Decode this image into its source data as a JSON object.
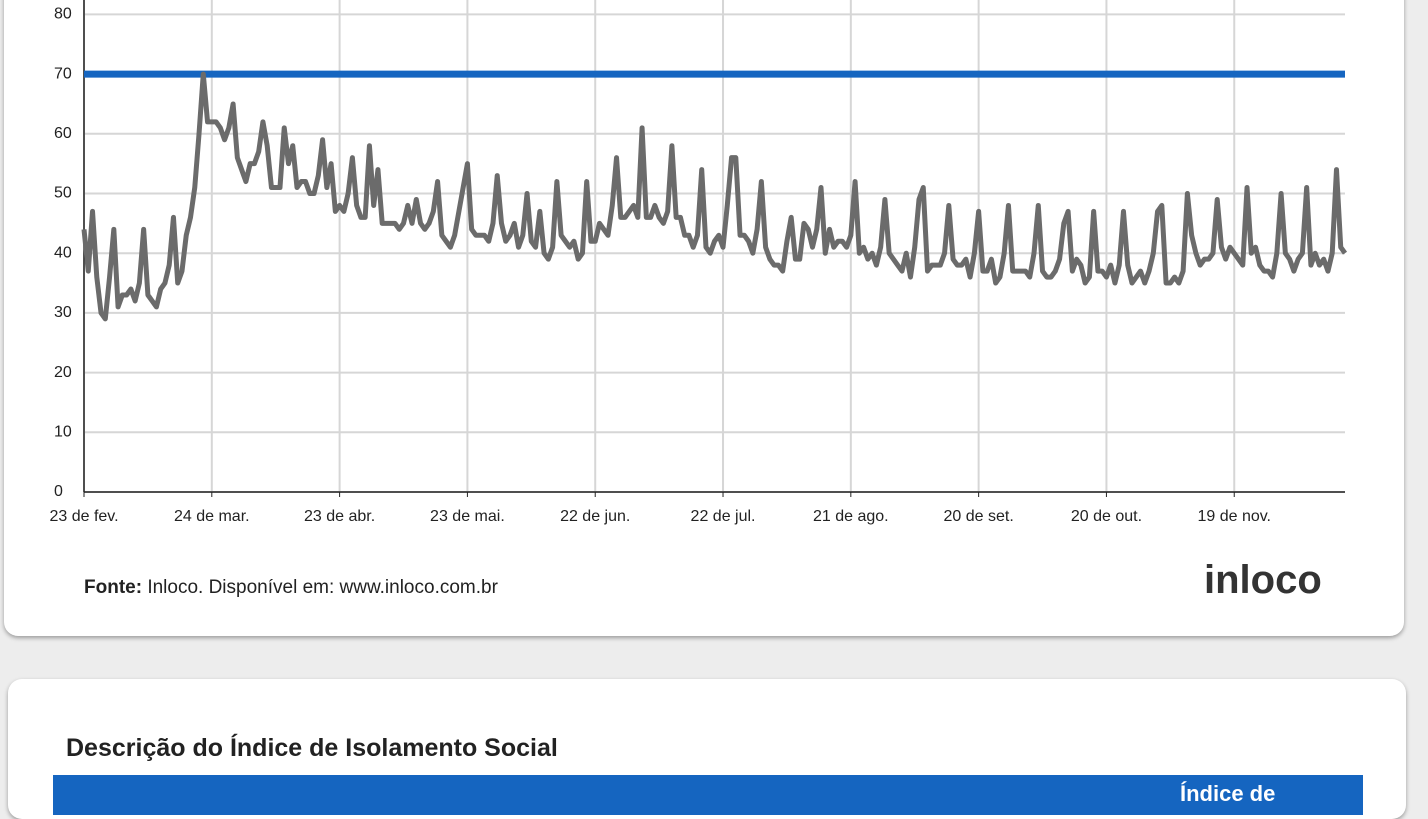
{
  "chart_data": {
    "type": "line",
    "series": [
      {
        "color": "#6b6b6b",
        "values": [
          44,
          37,
          47,
          36,
          30,
          29,
          36,
          44,
          31,
          33,
          33,
          34,
          32,
          35,
          44,
          33,
          32,
          31,
          34,
          35,
          38,
          46,
          35,
          37,
          43,
          46,
          51,
          60,
          70,
          62,
          62,
          62,
          61,
          59,
          61,
          65,
          56,
          54,
          52,
          55,
          55,
          57,
          62,
          58,
          51,
          51,
          51,
          61,
          55,
          58,
          51,
          52,
          52,
          50,
          50,
          53,
          59,
          51,
          55,
          47,
          48,
          47,
          50,
          56,
          48,
          46,
          46,
          58,
          48,
          54,
          45,
          45,
          45,
          45,
          44,
          45,
          48,
          45,
          49,
          45,
          44,
          45,
          47,
          52,
          43,
          42,
          41,
          43,
          47,
          51,
          55,
          44,
          43,
          43,
          43,
          42,
          45,
          53,
          45,
          42,
          43,
          45,
          41,
          43,
          50,
          42,
          41,
          47,
          40,
          39,
          41,
          52,
          43,
          42,
          41,
          42,
          39,
          40,
          52,
          42,
          42,
          45,
          44,
          43,
          48,
          56,
          46,
          46,
          47,
          48,
          46,
          61,
          46,
          46,
          48,
          46,
          45,
          47,
          58,
          46,
          46,
          43,
          43,
          41,
          43,
          54,
          41,
          40,
          42,
          43,
          41,
          48,
          56,
          56,
          43,
          43,
          42,
          40,
          44,
          52,
          41,
          39,
          38,
          38,
          37,
          42,
          46,
          39,
          39,
          45,
          44,
          41,
          44,
          51,
          40,
          44,
          41,
          42,
          42,
          41,
          43,
          52,
          40,
          41,
          39,
          40,
          38,
          41,
          49,
          40,
          39,
          38,
          37,
          40,
          36,
          41,
          49,
          51,
          37,
          38,
          38,
          38,
          40,
          48,
          39,
          38,
          38,
          39,
          36,
          40,
          47,
          37,
          37,
          39,
          35,
          36,
          40,
          48,
          37,
          37,
          37,
          37,
          36,
          40,
          48,
          37,
          36,
          36,
          37,
          39,
          45,
          47,
          37,
          39,
          38,
          35,
          36,
          47,
          37,
          37,
          36,
          38,
          35,
          38,
          47,
          38,
          35,
          36,
          37,
          35,
          37,
          40,
          47,
          48,
          35,
          35,
          36,
          35,
          37,
          50,
          43,
          40,
          38,
          39,
          39,
          40,
          49,
          41,
          39,
          41,
          40,
          39,
          38,
          51,
          40,
          41,
          38,
          37,
          37,
          36,
          40,
          50,
          40,
          39,
          37,
          39,
          40,
          51,
          38,
          40,
          38,
          39,
          37,
          40,
          54,
          41,
          40
        ]
      }
    ],
    "reference_line": {
      "value": 70,
      "color": "#1565c0"
    },
    "xlim": [
      0,
      296
    ],
    "xticks": [
      {
        "value": 0,
        "label": "23 de fev."
      },
      {
        "value": 30,
        "label": "24 de mar."
      },
      {
        "value": 60,
        "label": "23 de abr."
      },
      {
        "value": 90,
        "label": "23 de mai."
      },
      {
        "value": 120,
        "label": "22 de jun."
      },
      {
        "value": 150,
        "label": "22 de jul."
      },
      {
        "value": 180,
        "label": "21 de ago."
      },
      {
        "value": 210,
        "label": "20 de set."
      },
      {
        "value": 240,
        "label": "20 de out."
      },
      {
        "value": 270,
        "label": "19 de nov."
      }
    ],
    "ylim": [
      0,
      80
    ],
    "yticks": [
      0,
      10,
      20,
      30,
      40,
      50,
      60,
      70,
      80
    ],
    "grid": true
  },
  "source": {
    "label": "Fonte:",
    "text": "Inloco. Disponível em: www.inloco.com.br"
  },
  "logo": "inloco",
  "section": {
    "title": "Descrição do Índice de Isolamento Social",
    "table_header": "Índice de"
  }
}
